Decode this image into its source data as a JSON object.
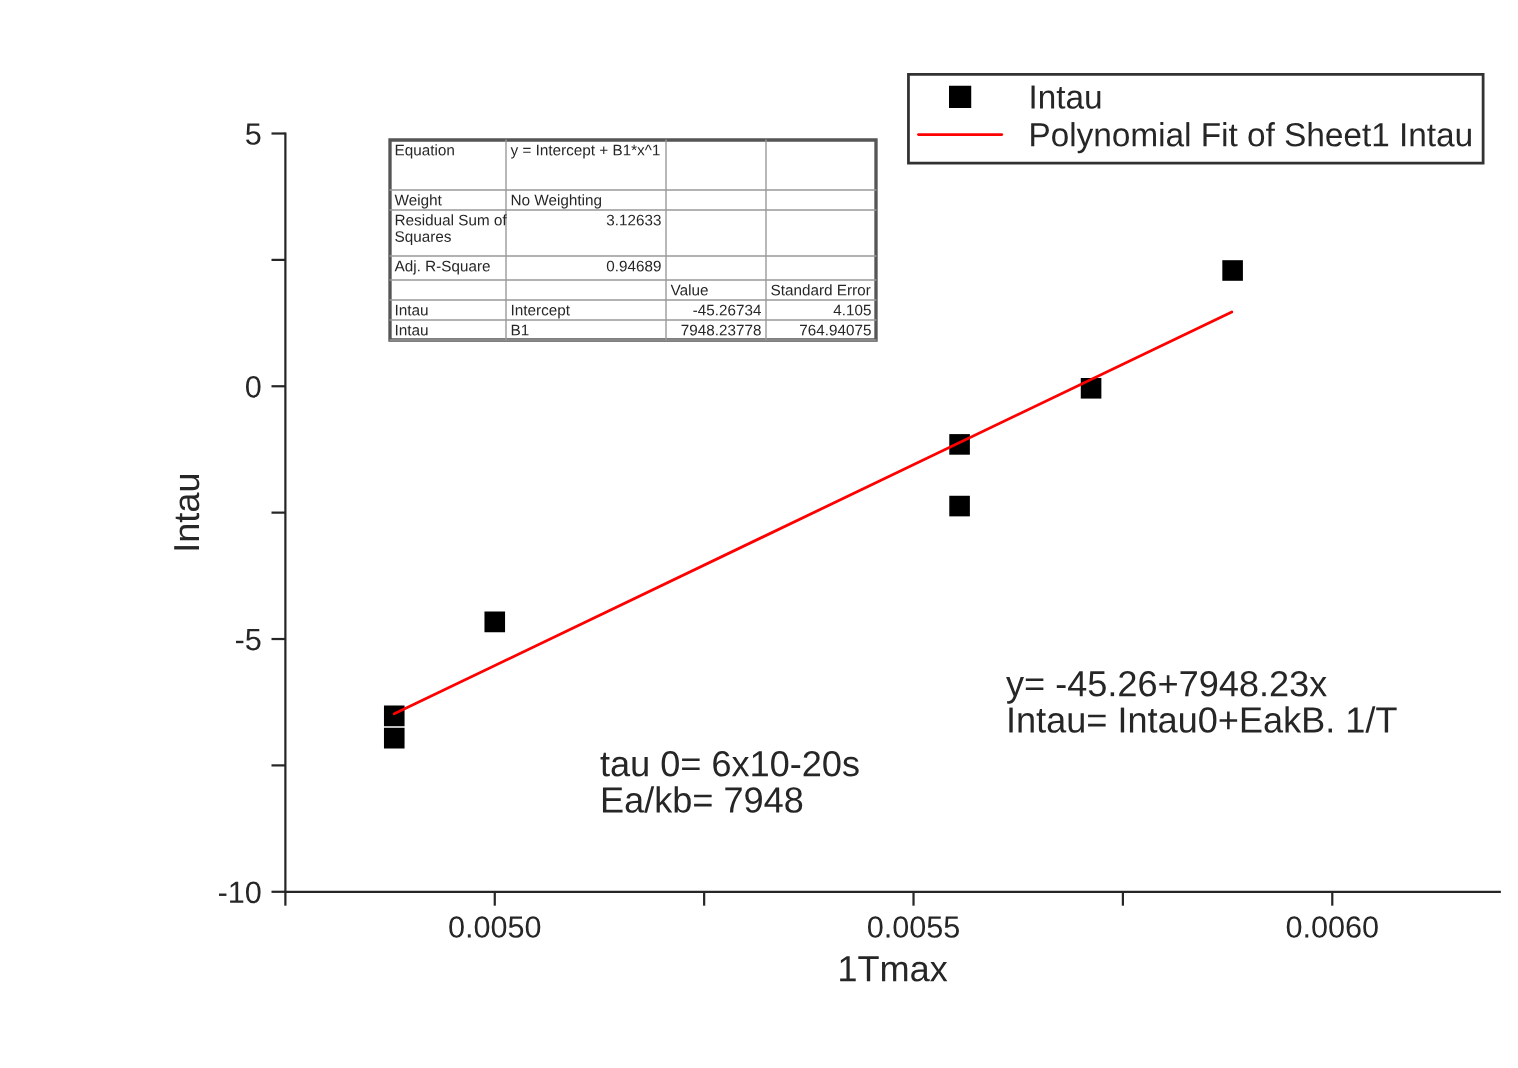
{
  "chart_data": {
    "type": "scatter",
    "xlabel": "1Tmax",
    "ylabel": "Intau",
    "series": [
      {
        "name": "Intau",
        "color": "#000000",
        "marker": "square",
        "x": [
          0.00488,
          0.00488,
          0.005,
          0.005555,
          0.005555,
          0.005712,
          0.005881
        ],
        "values": [
          -6.52,
          -6.96,
          -4.66,
          -1.15,
          -2.37,
          -0.04,
          2.29
        ]
      },
      {
        "name": "Polynomial Fit of Sheet1 Intau",
        "type": "line",
        "color": "#ff0000",
        "line_style": "solid",
        "marker": "none",
        "x": [
          0.00488,
          0.00588
        ],
        "values": [
          -6.48,
          1.47
        ]
      }
    ],
    "xlim": [
      0.00475,
      0.0062
    ],
    "ylim": [
      -10,
      5
    ],
    "xticks": [
      {
        "value": 0.00475,
        "label": null
      },
      {
        "value": 0.005,
        "label": "0.0050"
      },
      {
        "value": 0.00525,
        "label": null
      },
      {
        "value": 0.0055,
        "label": "0.0055"
      },
      {
        "value": 0.00575,
        "label": null
      },
      {
        "value": 0.006,
        "label": "0.0060"
      }
    ],
    "yticks": [
      -10,
      {
        "value": -7.5,
        "label": null
      },
      -5,
      {
        "value": -2.5,
        "label": null
      },
      0,
      {
        "value": 2.5,
        "label": null
      },
      5
    ],
    "grid": false,
    "legend": "top right",
    "annotations": [
      "Equation",
      "y = Intercept + B1*x^1",
      "Weight",
      "No Weighting",
      "Residual Sum of Squares",
      "3.12633",
      "Adj. R-Square",
      "0.94689",
      "Value",
      "Standard Error",
      "Intau",
      "Intercept",
      "-45.26734",
      "4.105",
      "Intau",
      "B1",
      "7948.23778",
      "764.94075",
      "y= -45.26+7948.23x\nIntau= Intau0+EakB. 1/T",
      "tau 0= 6x10-20s\nEa/kb= 7948"
    ]
  }
}
